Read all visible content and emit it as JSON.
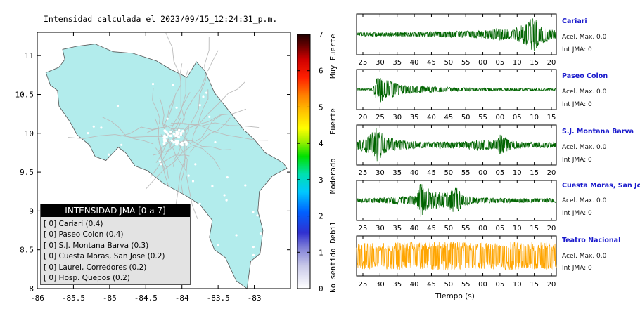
{
  "map": {
    "title": "Intensidad calculada el 2023/09/15_12:24:31_p.m.",
    "x_ticks": [
      "-86",
      "-85.5",
      "-85",
      "-84.5",
      "-84",
      "-83.5",
      "-83"
    ],
    "y_ticks": [
      "11",
      "10.5",
      "10",
      "9.5",
      "9",
      "8.5",
      "8"
    ],
    "land_color": "#b2ecec",
    "road_color": "#bcbcbc"
  },
  "legend": {
    "title": "INTENSIDAD JMA [0 a 7]",
    "items": [
      "[ 0]  Cariari (0.4)",
      "[ 0]  Paseo Colon (0.4)",
      "[ 0]  S.J. Montana Barva (0.3)",
      "[ 0]  Cuesta Moras, San Jose (0.2)",
      "[ 0]  Laurel, Corredores (0.2)",
      "[ 0]  Hosp. Quepos (0.2)"
    ]
  },
  "colorbar": {
    "ticks": [
      "7",
      "6",
      "5",
      "4",
      "3",
      "2",
      "1",
      "0"
    ],
    "labels": [
      "Muy Fuerte",
      "Fuerte",
      "Moderado",
      "Debil",
      "No sentido"
    ],
    "range": [
      0,
      7
    ]
  },
  "chart_data": {
    "type": "line",
    "xlabel": "Tiempo (s)",
    "series": [
      {
        "name": "Cariari",
        "x_ticks": [
          "25",
          "30",
          "35",
          "40",
          "45",
          "50",
          "55",
          "00",
          "05",
          "10",
          "15",
          "20"
        ],
        "accel_label": "Acel. Max. 0.0",
        "jma_label": "Int JMA: 0",
        "color": "#006400",
        "envelope": [
          [
            0,
            0.1
          ],
          [
            0.3,
            0.12
          ],
          [
            0.6,
            0.2
          ],
          [
            0.66,
            0.22
          ],
          [
            0.7,
            0.35
          ],
          [
            0.78,
            0.25
          ],
          [
            0.84,
            0.55
          ],
          [
            0.88,
            0.95
          ],
          [
            0.92,
            0.6
          ],
          [
            0.97,
            0.3
          ],
          [
            1,
            0.25
          ]
        ]
      },
      {
        "name": "Paseo Colon",
        "x_ticks": [
          "20",
          "25",
          "30",
          "35",
          "40",
          "45",
          "50",
          "55",
          "00",
          "05",
          "10",
          "15"
        ],
        "accel_label": "Acel. Max. 0.0",
        "jma_label": "Int JMA: 0",
        "color": "#006400",
        "envelope": [
          [
            0,
            0.05
          ],
          [
            0.08,
            0.06
          ],
          [
            0.1,
            0.6
          ],
          [
            0.12,
            0.75
          ],
          [
            0.16,
            0.5
          ],
          [
            0.22,
            0.25
          ],
          [
            0.3,
            0.2
          ],
          [
            0.45,
            0.12
          ],
          [
            0.6,
            0.08
          ],
          [
            1,
            0.06
          ]
        ]
      },
      {
        "name": "S.J. Montana Barva",
        "x_ticks": [
          "25",
          "30",
          "35",
          "40",
          "45",
          "50",
          "55",
          "00",
          "05",
          "10",
          "15",
          "20"
        ],
        "accel_label": "Acel. Max. 0.0",
        "jma_label": "Int JMA: 0",
        "color": "#006400",
        "envelope": [
          [
            0,
            0.2
          ],
          [
            0.06,
            0.5
          ],
          [
            0.1,
            0.95
          ],
          [
            0.14,
            0.5
          ],
          [
            0.22,
            0.25
          ],
          [
            0.35,
            0.15
          ],
          [
            0.55,
            0.2
          ],
          [
            0.6,
            0.3
          ],
          [
            0.7,
            0.25
          ],
          [
            0.72,
            0.6
          ],
          [
            0.76,
            0.3
          ],
          [
            0.85,
            0.15
          ],
          [
            1,
            0.15
          ]
        ]
      },
      {
        "name": "Cuesta Moras, San Jose",
        "x_ticks": [
          "25",
          "30",
          "35",
          "40",
          "45",
          "50",
          "55",
          "00",
          "05",
          "10",
          "15",
          "20"
        ],
        "accel_label": "Acel. Max. 0.0",
        "jma_label": "Int JMA: 0",
        "color": "#006400",
        "envelope": [
          [
            0,
            0.1
          ],
          [
            0.12,
            0.15
          ],
          [
            0.2,
            0.2
          ],
          [
            0.3,
            0.25
          ],
          [
            0.32,
            0.95
          ],
          [
            0.38,
            0.5
          ],
          [
            0.45,
            0.4
          ],
          [
            0.5,
            0.8
          ],
          [
            0.53,
            0.3
          ],
          [
            0.6,
            0.15
          ],
          [
            0.8,
            0.12
          ],
          [
            1,
            0.12
          ]
        ]
      },
      {
        "name": "Teatro Nacional",
        "x_ticks": [
          "25",
          "30",
          "35",
          "40",
          "45",
          "50",
          "55",
          "00",
          "05",
          "10",
          "15",
          "20"
        ],
        "accel_label": "Acel. Max. 0.0",
        "jma_label": "Int JMA: 0",
        "color": "#ffa500",
        "envelope": [
          [
            0,
            0.7
          ],
          [
            0.2,
            0.75
          ],
          [
            0.4,
            0.8
          ],
          [
            0.6,
            0.72
          ],
          [
            0.8,
            0.75
          ],
          [
            1,
            0.72
          ]
        ]
      }
    ]
  }
}
